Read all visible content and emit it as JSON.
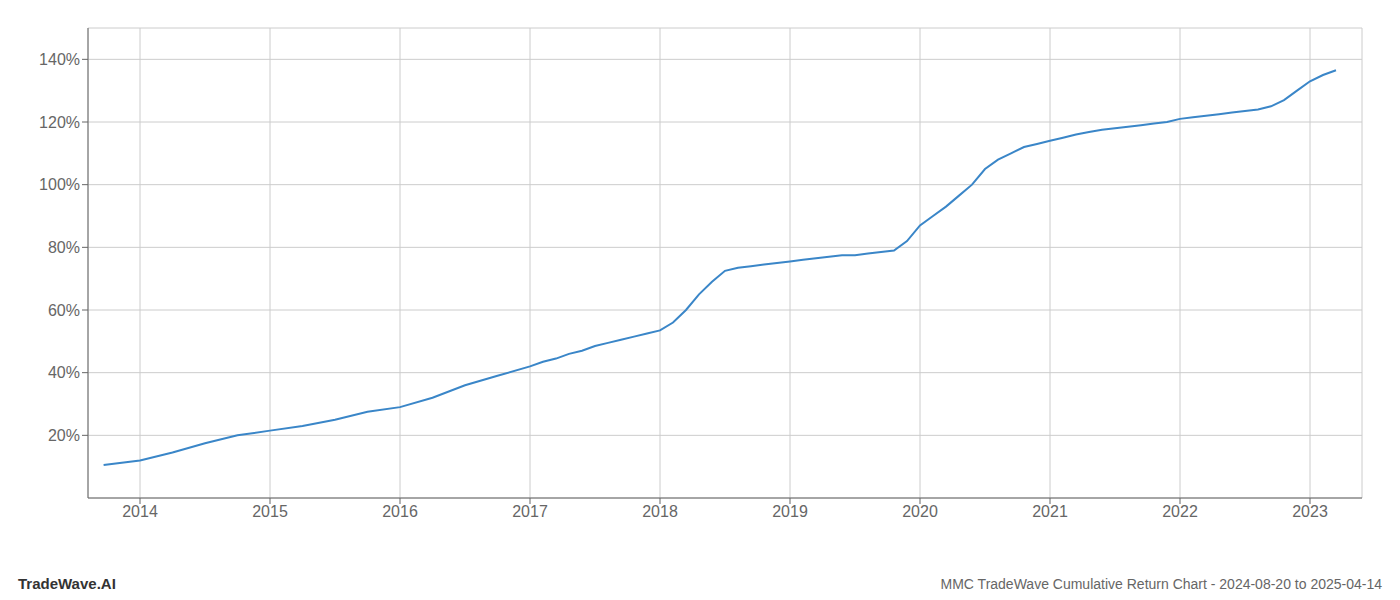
{
  "chart_data": {
    "type": "line",
    "title": "MMC TradeWave Cumulative Return Chart - 2024-08-20 to 2025-04-14",
    "annotations": [
      "TradeWave.AI"
    ],
    "x": [
      2013.72,
      2014.0,
      2014.25,
      2014.5,
      2014.75,
      2015.0,
      2015.25,
      2015.5,
      2015.75,
      2016.0,
      2016.25,
      2016.5,
      2016.75,
      2017.0,
      2017.1,
      2017.2,
      2017.3,
      2017.4,
      2017.5,
      2017.6,
      2017.7,
      2017.8,
      2017.9,
      2018.0,
      2018.1,
      2018.2,
      2018.3,
      2018.4,
      2018.5,
      2018.6,
      2018.7,
      2018.8,
      2018.9,
      2019.0,
      2019.1,
      2019.2,
      2019.3,
      2019.4,
      2019.5,
      2019.6,
      2019.7,
      2019.8,
      2019.9,
      2020.0,
      2020.1,
      2020.2,
      2020.3,
      2020.4,
      2020.5,
      2020.6,
      2020.7,
      2020.8,
      2020.9,
      2021.0,
      2021.1,
      2021.2,
      2021.3,
      2021.4,
      2021.5,
      2021.6,
      2021.7,
      2021.8,
      2021.9,
      2022.0,
      2022.1,
      2022.2,
      2022.3,
      2022.4,
      2022.5,
      2022.6,
      2022.7,
      2022.8,
      2022.9,
      2023.0,
      2023.1,
      2023.2
    ],
    "values": [
      10.5,
      12.0,
      14.5,
      17.5,
      20.0,
      21.5,
      23.0,
      25.0,
      27.5,
      29.0,
      32.0,
      36.0,
      39.0,
      42.0,
      43.5,
      44.5,
      46.0,
      47.0,
      48.5,
      49.5,
      50.5,
      51.5,
      52.5,
      53.5,
      56.0,
      60.0,
      65.0,
      69.0,
      72.5,
      73.5,
      74.0,
      74.5,
      75.0,
      75.5,
      76.0,
      76.5,
      77.0,
      77.5,
      77.5,
      78.0,
      78.5,
      79.0,
      82.0,
      87.0,
      90.0,
      93.0,
      96.5,
      100.0,
      105.0,
      108.0,
      110.0,
      112.0,
      113.0,
      114.0,
      115.0,
      116.0,
      116.8,
      117.5,
      118.0,
      118.5,
      119.0,
      119.5,
      120.0,
      121.0,
      121.5,
      122.0,
      122.5,
      123.0,
      123.5,
      124.0,
      125.0,
      127.0,
      130.0,
      133.0,
      135.0,
      136.5
    ],
    "color": "#3a86c8",
    "xlim": [
      2013.6,
      2023.4
    ],
    "ylim": [
      0,
      150
    ],
    "xticks": [
      2014,
      2015,
      2016,
      2017,
      2018,
      2019,
      2020,
      2021,
      2022,
      2023
    ],
    "yticks": [
      {
        "value": 20,
        "label": "20%"
      },
      {
        "value": 40,
        "label": "40%"
      },
      {
        "value": 60,
        "label": "60%"
      },
      {
        "value": 80,
        "label": "80%"
      },
      {
        "value": 100,
        "label": "100%"
      },
      {
        "value": 120,
        "label": "120%"
      },
      {
        "value": 140,
        "label": "140%"
      }
    ],
    "grid": true
  }
}
